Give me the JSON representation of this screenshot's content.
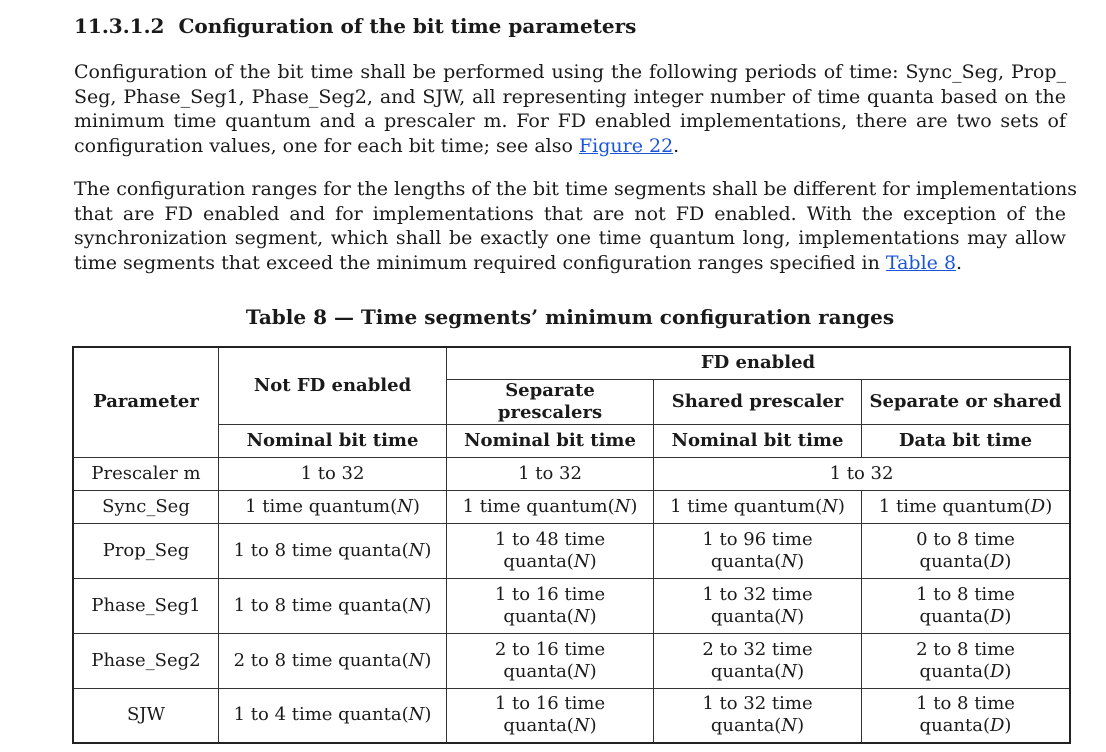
{
  "section": {
    "number": "11.3.1.2",
    "title": "Configuration of the bit time parameters"
  },
  "para1": {
    "lines": [
      "Configuration of the bit time shall be performed using the following periods of time: Sync_Seg, Prop_",
      "Seg, Phase_Seg1, Phase_Seg2, and SJW, all representing integer number of time quanta based on the",
      "minimum time quantum and a prescaler m. For FD enabled implementations, there are two sets of"
    ],
    "last_line_text": "configuration values, one for each bit time; see also ",
    "link": "Figure 22",
    "end": "."
  },
  "para2": {
    "lines": [
      "The configuration ranges for the lengths of the bit time segments shall be different for implementations",
      "that are FD enabled and for implementations that are not FD enabled. With the exception of the",
      "synchronization segment, which shall be exactly one time quantum long, implementations may allow"
    ],
    "last_line_text": "time segments that exceed the minimum required configuration ranges specified in ",
    "link": "Table 8",
    "end": "."
  },
  "table": {
    "caption": "Table 8 — Time segments’ minimum configuration ranges",
    "headers": {
      "parameter": "Parameter",
      "not_fd": "Not FD enabled",
      "fd": "FD enabled",
      "separate_prescalers": "Separate prescalers",
      "shared_prescaler": "Shared prescaler",
      "separate_or_shared": "Separate or shared",
      "nominal_1": "Nominal bit time",
      "nominal_2": "Nominal bit time",
      "nominal_3": "Nominal bit time",
      "data_bit": "Data bit time"
    },
    "rows": {
      "prescaler": {
        "param": "Prescaler m",
        "c1": "1 to 32",
        "c2": "1 to 32",
        "c34": "1 to 32"
      },
      "sync": {
        "param": "Sync_Seg",
        "c1a": "1 time quantum(",
        "c1v": "N",
        "c1b": ")",
        "c2a": "1 time quantum(",
        "c2v": "N",
        "c2b": ")",
        "c3a": "1 time quantum(",
        "c3v": "N",
        "c3b": ")",
        "c4a": "1 time quantum(",
        "c4v": "D",
        "c4b": ")"
      },
      "prop": {
        "param": "Prop_Seg",
        "c1a": "1 to 8 time quanta(",
        "c1v": "N",
        "c1b": ")",
        "c2l1": "1 to 48 time",
        "c2a": "quanta(",
        "c2v": "N",
        "c2b": ")",
        "c3l1": "1 to 96 time",
        "c3a": "quanta(",
        "c3v": "N",
        "c3b": ")",
        "c4l1": "0 to 8 time",
        "c4a": "quanta(",
        "c4v": "D",
        "c4b": ")"
      },
      "phase1": {
        "param": "Phase_Seg1",
        "c1a": "1 to 8 time quanta(",
        "c1v": "N",
        "c1b": ")",
        "c2l1": "1 to 16 time",
        "c2a": "quanta(",
        "c2v": "N",
        "c2b": ")",
        "c3l1": "1 to 32 time",
        "c3a": "quanta(",
        "c3v": "N",
        "c3b": ")",
        "c4l1": "1 to 8 time",
        "c4a": "quanta(",
        "c4v": "D",
        "c4b": ")"
      },
      "phase2": {
        "param": "Phase_Seg2",
        "c1a": "2 to 8 time quanta(",
        "c1v": "N",
        "c1b": ")",
        "c2l1": "2 to 16 time",
        "c2a": "quanta(",
        "c2v": "N",
        "c2b": ")",
        "c3l1": "2 to 32 time",
        "c3a": "quanta(",
        "c3v": "N",
        "c3b": ")",
        "c4l1": "2 to 8 time",
        "c4a": "quanta(",
        "c4v": "D",
        "c4b": ")"
      },
      "sjw": {
        "param": "SJW",
        "c1a": "1 to 4 time quanta(",
        "c1v": "N",
        "c1b": ")",
        "c2l1": "1 to 16 time",
        "c2a": "quanta(",
        "c2v": "N",
        "c2b": ")",
        "c3l1": "1 to 32 time",
        "c3a": "quanta(",
        "c3v": "N",
        "c3b": ")",
        "c4l1": "1 to 8 time",
        "c4a": "quanta(",
        "c4v": "D",
        "c4b": ")"
      }
    }
  }
}
